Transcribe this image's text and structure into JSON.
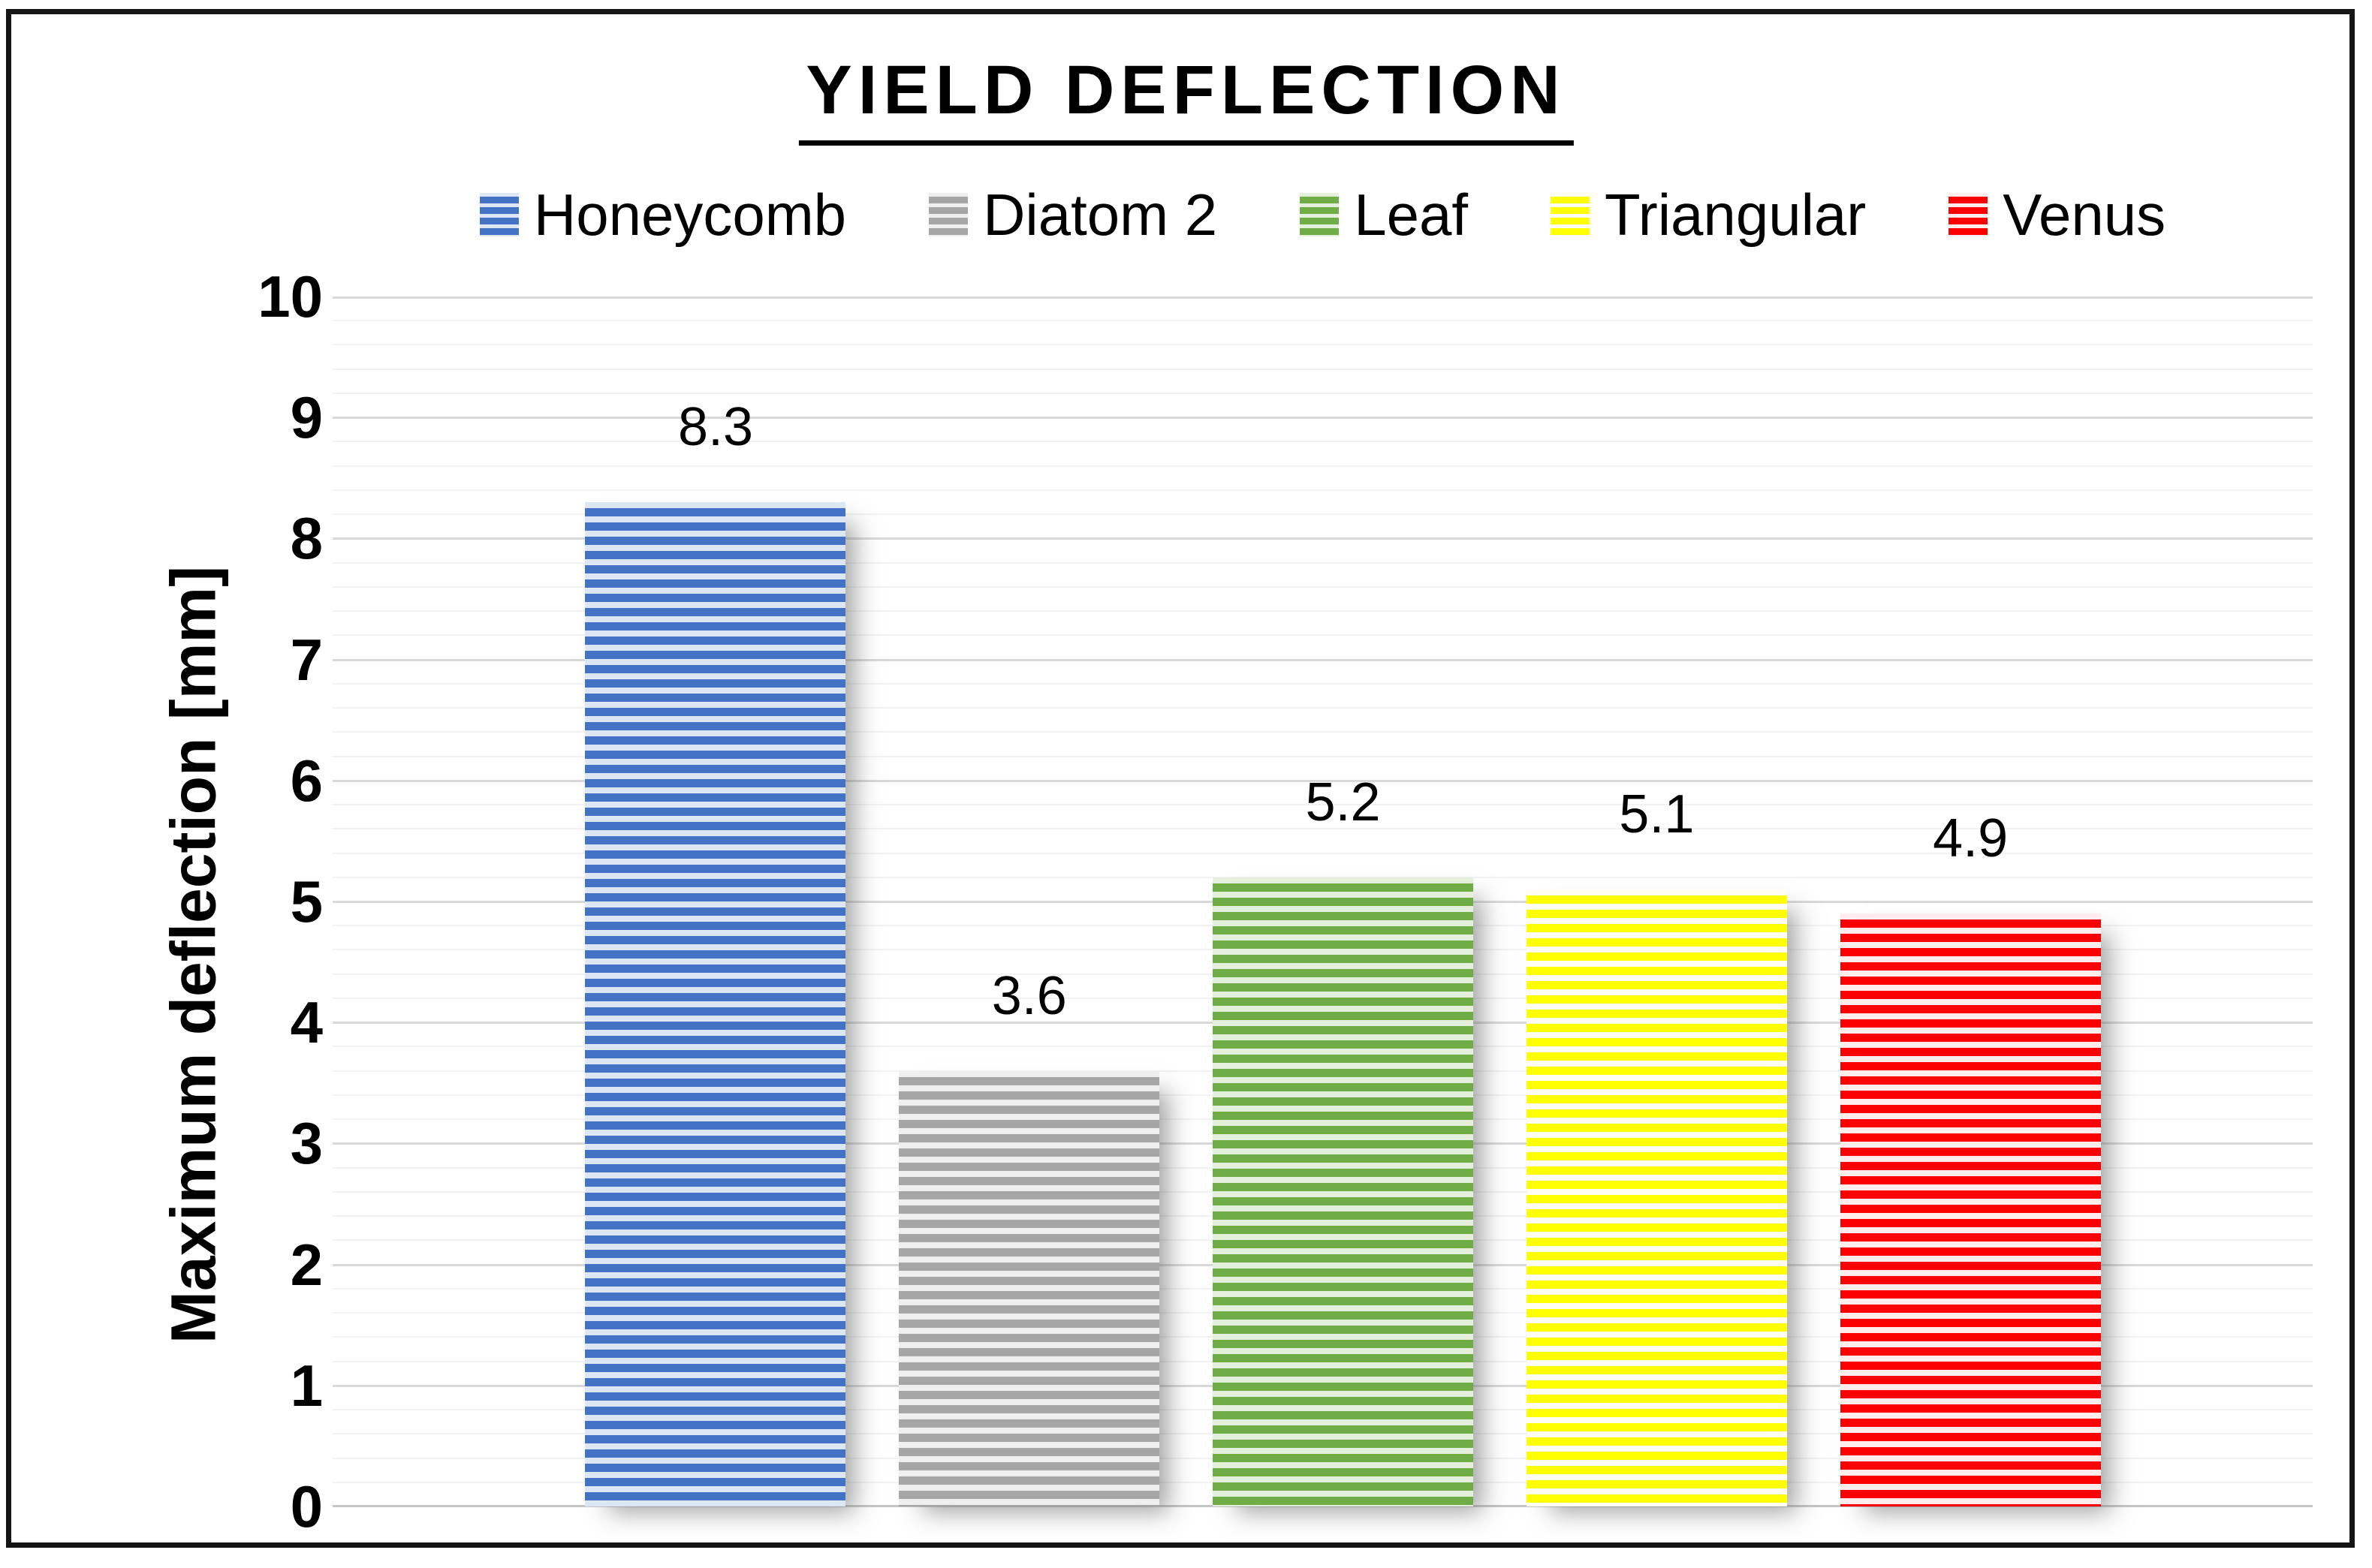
{
  "chart_data": {
    "type": "bar",
    "title": "YIELD DEFLECTION",
    "title_underlined": true,
    "xlabel": "",
    "ylabel": "Maximum deflection [mm]",
    "ylim": [
      0,
      10
    ],
    "ytick_step": 1,
    "ytick_labels": [
      "10",
      "9",
      "8",
      "7",
      "6",
      "5",
      "4",
      "3",
      "2",
      "1",
      "0"
    ],
    "minor_gridline_step": 0.2,
    "grid": "on",
    "legend_position": "top",
    "value_labels_shown": true,
    "categories": [
      "Honeycomb",
      "Diatom 2",
      "Leaf",
      "Triangular",
      "Venus"
    ],
    "values": [
      8.3,
      3.6,
      5.2,
      5.1,
      4.9
    ],
    "series": [
      {
        "name": "Honeycomb",
        "value": 8.3,
        "value_label": "8.3",
        "fill_pattern": "horizontal-stripes",
        "stripe_color": "#4472C4",
        "gap_color": "#dde6f4"
      },
      {
        "name": "Diatom 2",
        "value": 3.6,
        "value_label": "3.6",
        "fill_pattern": "horizontal-stripes",
        "stripe_color": "#A6A6A6",
        "gap_color": "#efefef"
      },
      {
        "name": "Leaf",
        "value": 5.2,
        "value_label": "5.2",
        "fill_pattern": "horizontal-stripes",
        "stripe_color": "#70AD47",
        "gap_color": "#e5f0dc"
      },
      {
        "name": "Triangular",
        "value": 5.1,
        "value_label": "5.1",
        "fill_pattern": "horizontal-stripes",
        "stripe_color": "#FFFF00",
        "gap_color": "#fffdf2"
      },
      {
        "name": "Venus",
        "value": 4.9,
        "value_label": "4.9",
        "fill_pattern": "horizontal-stripes",
        "stripe_color": "#FA0000",
        "gap_color": "#ffecec"
      }
    ],
    "colors": {
      "gridline_major": "#d9d9d9",
      "gridline_minor": "#f2f2f2",
      "baseline": "#c6c6c6",
      "frame": "#151515",
      "text": "#000000",
      "background": "#ffffff"
    }
  }
}
